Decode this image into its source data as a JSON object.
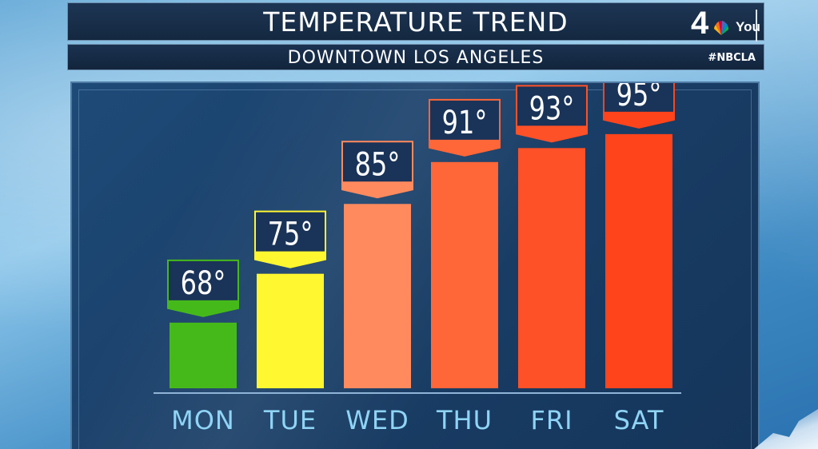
{
  "header": {
    "title": "TEMPERATURE TREND",
    "subtitle": "DOWNTOWN LOS ANGELES",
    "hashtag": "#NBCLA",
    "logo_number": "4",
    "logo_word": "You"
  },
  "chart_data": {
    "type": "bar",
    "categories": [
      "MON",
      "TUE",
      "WED",
      "THU",
      "FRI",
      "SAT"
    ],
    "values": [
      68,
      75,
      85,
      91,
      93,
      95
    ],
    "labels": [
      "68°",
      "75°",
      "85°",
      "91°",
      "93°",
      "95°"
    ],
    "colors": [
      "#46b91a",
      "#fff730",
      "#ff8a5e",
      "#ff6638",
      "#ff5128",
      "#ff441c"
    ],
    "title": "TEMPERATURE TREND",
    "subtitle": "DOWNTOWN LOS ANGELES",
    "grid": false,
    "legend": "none"
  },
  "colors": {
    "label_box": "#1a3358",
    "axis_text": "#8fd4f5",
    "baseline": "#8fb4d6"
  }
}
